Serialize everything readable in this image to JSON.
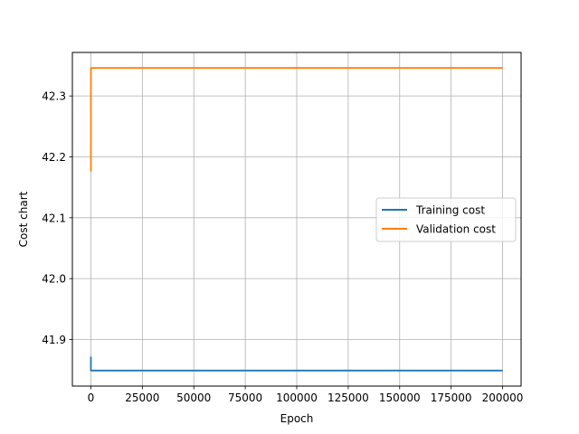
{
  "chart_data": {
    "type": "line",
    "title": "",
    "xlabel": "Epoch",
    "ylabel": "Cost chart",
    "xlim": [
      -9000,
      209000
    ],
    "ylim": [
      41.8235,
      42.3715
    ],
    "xticks": [
      0,
      25000,
      50000,
      75000,
      100000,
      125000,
      150000,
      175000,
      200000
    ],
    "xtick_labels": [
      "0",
      "25000",
      "50000",
      "75000",
      "100000",
      "125000",
      "150000",
      "175000",
      "200000"
    ],
    "yticks": [
      41.9,
      42.0,
      42.1,
      42.2,
      42.3
    ],
    "ytick_labels": [
      "41.9",
      "42.0",
      "42.1",
      "42.2",
      "42.3"
    ],
    "grid": true,
    "legend_position": "center-right",
    "series": [
      {
        "name": "Training cost",
        "color": "#1f77b4",
        "x": [
          0,
          1,
          200000
        ],
        "y": [
          41.872,
          41.849,
          41.849
        ]
      },
      {
        "name": "Validation cost",
        "color": "#ff7f0e",
        "x": [
          0,
          1,
          200000
        ],
        "y": [
          42.176,
          42.346,
          42.346
        ]
      }
    ]
  }
}
